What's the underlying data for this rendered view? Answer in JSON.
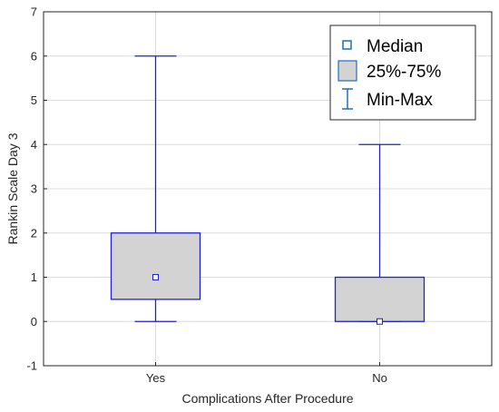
{
  "chart_data": {
    "type": "box",
    "xlabel": "Complications After Procedure",
    "ylabel": "Rankin Scale Day 3",
    "ylim": [
      -1,
      7
    ],
    "yticks": [
      -1,
      0,
      1,
      2,
      3,
      4,
      5,
      6,
      7
    ],
    "grid": true,
    "categories": [
      "Yes",
      "No"
    ],
    "boxes": [
      {
        "category": "Yes",
        "min": 0,
        "q1": 0.5,
        "median": 1,
        "q3": 2,
        "max": 6
      },
      {
        "category": "No",
        "min": 0,
        "q1": 0,
        "median": 0,
        "q3": 1,
        "max": 4
      }
    ],
    "legend": {
      "position": "top-right",
      "entries": [
        "Median",
        "25%-75%",
        "Min-Max"
      ]
    },
    "colors": {
      "box_fill": "#d3d3d3",
      "line": "#2222cc",
      "legend_symbol": "#1f6fbf"
    }
  }
}
